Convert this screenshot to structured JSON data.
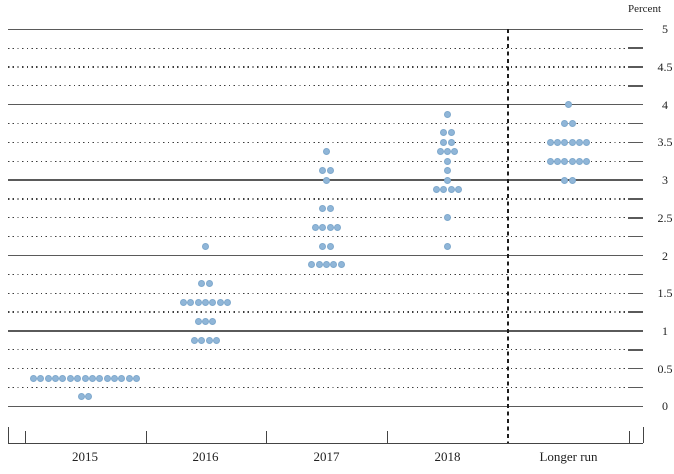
{
  "header": {
    "units_label": "Percent"
  },
  "chart_data": {
    "type": "scatter",
    "subtype": "fomc-dot-plot",
    "title": "",
    "xlabel": "",
    "ylabel": "Percent",
    "ylim": [
      0,
      5
    ],
    "y_minor_step": 0.25,
    "grid": "dotted lines every 0.25, solid lines at integers",
    "legend_position": "none",
    "dot_color": "#90b6d8",
    "separator_note": "dashed vertical line between 2018 and Longer run",
    "y_ticks": [
      {
        "value": 5,
        "label": "5"
      },
      {
        "value": 4.5,
        "label": "4.5"
      },
      {
        "value": 4,
        "label": "4"
      },
      {
        "value": 3.5,
        "label": "3.5"
      },
      {
        "value": 3,
        "label": "3"
      },
      {
        "value": 2.5,
        "label": "2.5"
      },
      {
        "value": 2,
        "label": "2"
      },
      {
        "value": 1.5,
        "label": "1.5"
      },
      {
        "value": 1,
        "label": "1"
      },
      {
        "value": 0.5,
        "label": "0.5"
      },
      {
        "value": 0,
        "label": "0"
      }
    ],
    "categories": [
      "2015",
      "2016",
      "2017",
      "2018",
      "Longer run"
    ],
    "series": [
      {
        "name": "2015",
        "dots": [
          {
            "value": 0.375,
            "count": 15
          },
          {
            "value": 0.125,
            "count": 2
          }
        ]
      },
      {
        "name": "2016",
        "dots": [
          {
            "value": 2.125,
            "count": 1
          },
          {
            "value": 1.625,
            "count": 2
          },
          {
            "value": 1.375,
            "count": 7
          },
          {
            "value": 1.125,
            "count": 3
          },
          {
            "value": 0.875,
            "count": 4
          }
        ]
      },
      {
        "name": "2017",
        "dots": [
          {
            "value": 3.375,
            "count": 1
          },
          {
            "value": 3.125,
            "count": 2
          },
          {
            "value": 3.0,
            "count": 1
          },
          {
            "value": 2.625,
            "count": 2
          },
          {
            "value": 2.375,
            "count": 4
          },
          {
            "value": 2.125,
            "count": 2
          },
          {
            "value": 1.875,
            "count": 5
          }
        ]
      },
      {
        "name": "2018",
        "dots": [
          {
            "value": 3.875,
            "count": 1
          },
          {
            "value": 3.625,
            "count": 2
          },
          {
            "value": 3.5,
            "count": 2
          },
          {
            "value": 3.375,
            "count": 3
          },
          {
            "value": 3.25,
            "count": 1
          },
          {
            "value": 3.125,
            "count": 1
          },
          {
            "value": 3.0,
            "count": 1
          },
          {
            "value": 2.875,
            "count": 4
          },
          {
            "value": 2.5,
            "count": 1
          },
          {
            "value": 2.125,
            "count": 1
          }
        ]
      },
      {
        "name": "Longer run",
        "dots": [
          {
            "value": 4.0,
            "count": 1
          },
          {
            "value": 3.75,
            "count": 2
          },
          {
            "value": 3.5,
            "count": 6
          },
          {
            "value": 3.25,
            "count": 6
          },
          {
            "value": 3.0,
            "count": 2
          }
        ]
      }
    ]
  }
}
